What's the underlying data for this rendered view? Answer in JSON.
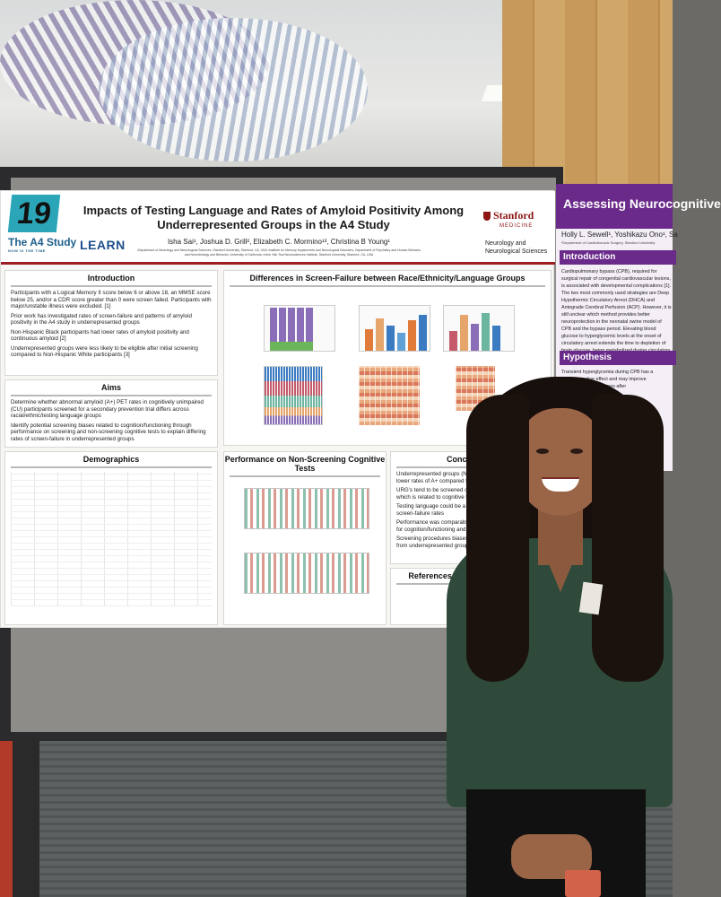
{
  "poster": {
    "number": "19",
    "study_logo": "The A4 Study",
    "study_tagline": "NOW IS THE TIME",
    "learn_logo": "LEARN",
    "title_line1": "Impacts of Testing Language and Rates of Amyloid Positivity Among",
    "title_line2": "Underrepresented Groups in the A4 Study",
    "authors": "Isha Sai¹, Joshua D. Grill², Elizabeth C. Mormino¹³, Christina B Young¹",
    "affiliations": "¹Department of Neurology and Neurological Sciences, Stanford University, Stanford, CA, USA ²Institute for Memory Impairments and Neurological Disorders, Department of Psychiatry and Human Behavior and Neurobiology and Behavior, University of California, Irvine ³Wu Tsai Neurosciences Institute, Stanford University, Stanford, CA, USA",
    "stanford": "Stanford",
    "stanford_medicine": "MEDICINE",
    "dept": "Neurology and Neurological Sciences",
    "intro": {
      "title": "Introduction",
      "bullets": [
        "Participants with a Logical Memory II score below 6 or above 18, an MMSE score below 25, and/or a CDR score greater than 0 were screen failed. Participants with major/unstable illness were excluded. [1]",
        "Prior work has investigated rates of screen-failure and patterns of amyloid positivity in the A4 study in underrepresented groups",
        "Non-Hispanic Black participants had lower rates of amyloid positivity and continuous amyloid [2]",
        "Underrepresented groups were less likely to be eligible after initial screening compared to Non-Hispanic White participants [3]"
      ]
    },
    "aims": {
      "title": "Aims",
      "bullets": [
        "Determine whether abnormal amyloid (A+) PET rates in cognitively unimpaired (CU) participants screened for a secondary prevention trial differs across racial/ethnic/testing language groups",
        "Identify potential screening biases related to cognition/functioning through performance on screening and non-screening cognitive tests to explain differing rates of screen-failure in underrepresented groups"
      ]
    },
    "demographics": {
      "title": "Demographics"
    },
    "diff": {
      "title": "Differences in Screen-Failure between Race/Ethnicity/Language Groups"
    },
    "perf": {
      "title": "Performance on Non-Screening Cognitive Tests"
    },
    "conclusions": {
      "title": "Conclusions",
      "bullets": [
        "Underrepresented groups (NHB-E, NHA-E, and HS-S) had lower rates of A+ compared to the NHW-E group",
        "URG's tend to be screened out at higher rates at the CDR which is related to cognitive testing & medical reasons",
        "Testing language could be a contributing factor to differing screen-failure rates",
        "Performance was comparable between the group screened for cognition/functioning and A+",
        "Screening procedures biases may discourage participants from underrepresented groups"
      ]
    },
    "refs": {
      "title": "References & Acknowledgments"
    }
  },
  "neighbor_poster": {
    "title": "Assessing Neurocognitive",
    "authors": "Holly L. Sewell¹, Yoshikazu Ono¹, Sa",
    "dept": "¹Department of Cardiothoracic Surgery, Stanford University",
    "intro_title": "Introduction",
    "intro_text": "Cardiopulmonary bypass (CPB), required for surgical repair of congenital cardiovascular lesions, is associated with developmental complications [1]. The two most commonly used strategies are Deep Hypothermic Circulatory Arrest (DHCA) and Antegrade Cerebral Perfusion (ACP). However, it is still unclear which method provides better neuroprotection in the neonatal swine model of CPB and the bypass period. Elevating blood glucose to hyperglycemic levels at the onset of circulatory arrest extends the time to depletion of brain glucose, being metabolized during circulatory arrest.",
    "hyp_title": "Hypothesis",
    "hyp_text": "Transient hyperglycemia during CPB has a neuroprotective effect and may improve neurocognitive outcomes after"
  },
  "colors": {
    "stanford_red": "#8c1515",
    "badge_teal": "#2aa6b8",
    "neighbor_purple": "#6a2a8a"
  }
}
